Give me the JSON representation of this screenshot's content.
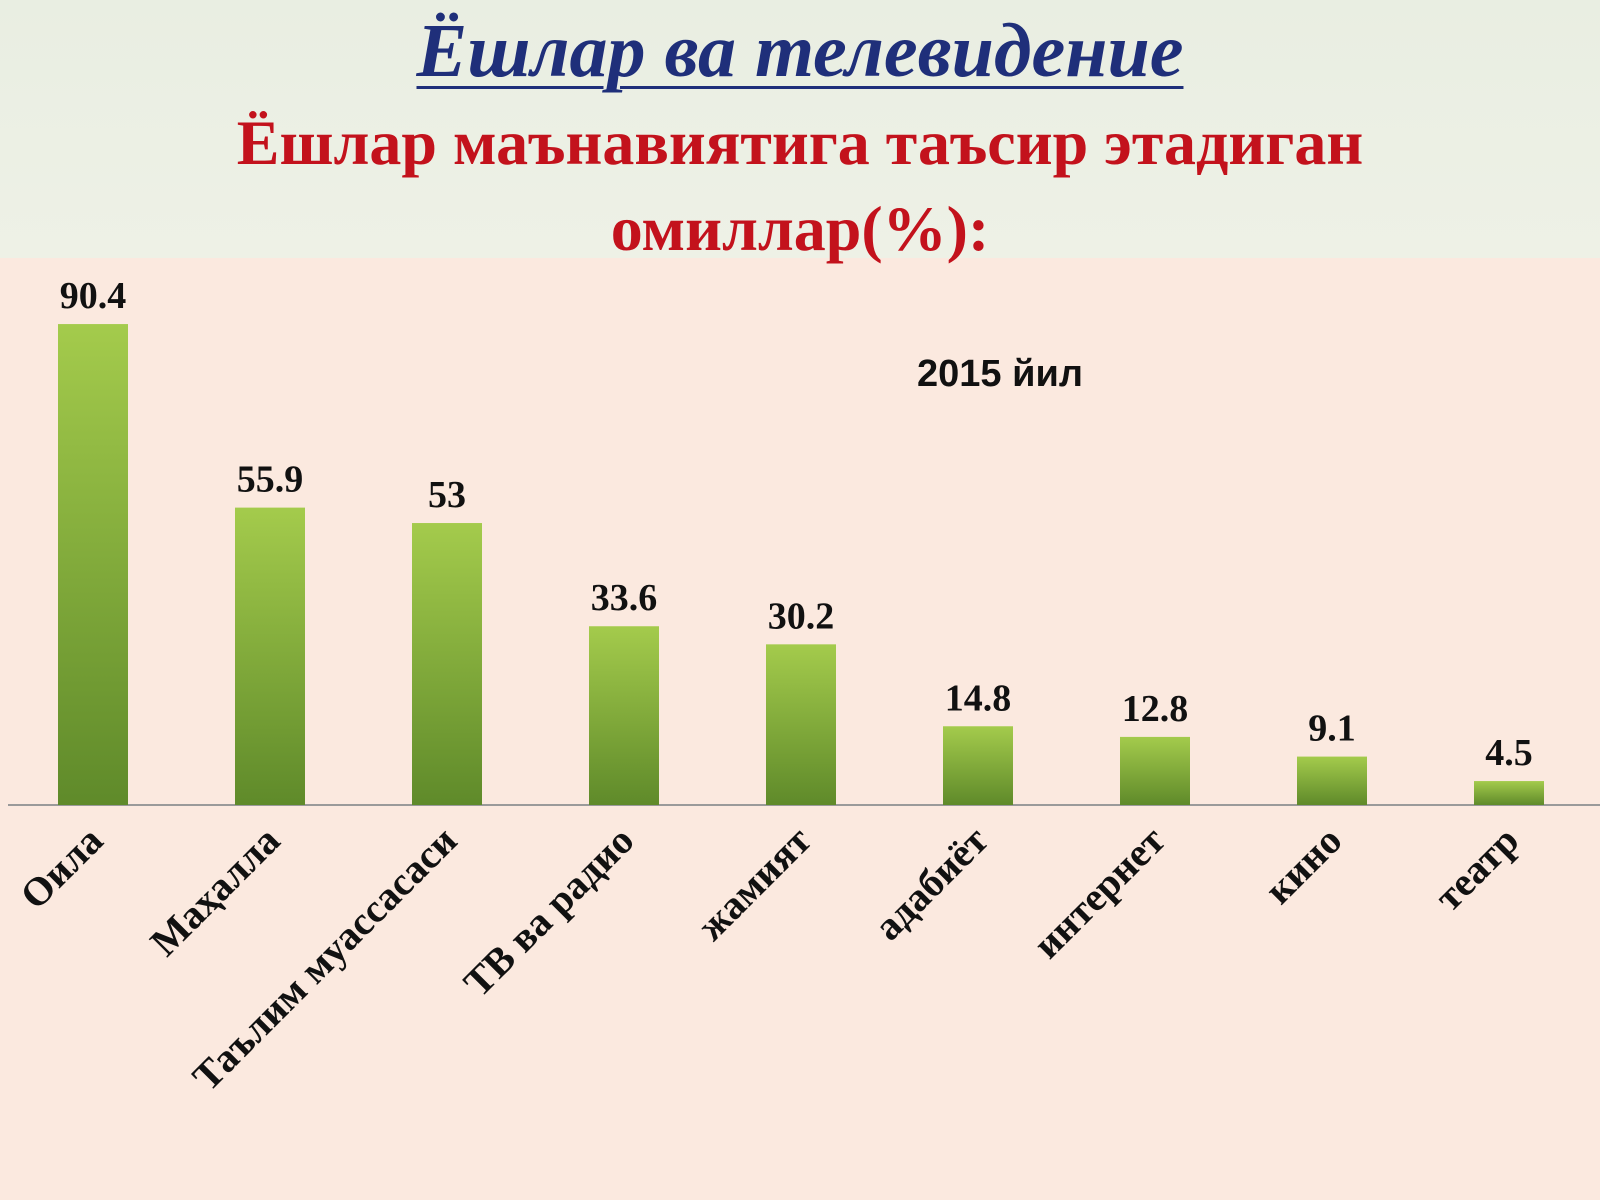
{
  "header": {
    "title": "Ёшлар ва телевидение",
    "subtitle_line1": "Ёшлар маънавиятига таъсир этадиган",
    "subtitle_line2": "омиллар(%):"
  },
  "colors": {
    "bar_top": "#a4cb4c",
    "bar_bottom": "#5f8a2a",
    "title": "#1f2f7a",
    "subtitle": "#c3121c"
  },
  "chart_data": {
    "type": "bar",
    "title": "2015 йил",
    "categories": [
      "Оила",
      "Маҳалла",
      "Таълим муассасаси",
      "ТВ ва радио",
      "жамият",
      "адабиёт",
      "интернет",
      "кино",
      "театр"
    ],
    "values": [
      90.4,
      55.9,
      53,
      33.6,
      30.2,
      14.8,
      12.8,
      9.1,
      4.5
    ],
    "value_labels": [
      "90.4",
      "55.9",
      "53",
      "33.6",
      "30.2",
      "14.8",
      "12.8",
      "9.1",
      "4.5"
    ],
    "xlabel": "",
    "ylabel": "",
    "ylim": [
      0,
      100
    ],
    "grid": false,
    "legend": "none"
  }
}
